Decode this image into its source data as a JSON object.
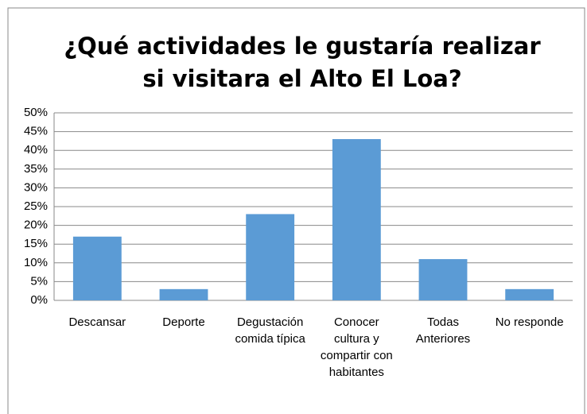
{
  "chart_data": {
    "type": "bar",
    "title": "¿Qué actividades le gustaría realizar si visitara el Alto El Loa?",
    "categories": [
      "Descansar",
      "Deporte",
      "Degustación comida típica",
      "Conocer cultura y compartir con habitantes",
      "Todas Anteriores",
      "No responde"
    ],
    "values": [
      17,
      3,
      23,
      43,
      11,
      3
    ],
    "color": "#5b9bd5",
    "ylim": [
      0,
      50
    ],
    "yticks": [
      {
        "value": 0,
        "label": "0%"
      },
      {
        "value": 5,
        "label": "5%"
      },
      {
        "value": 10,
        "label": "10%"
      },
      {
        "value": 15,
        "label": "15%"
      },
      {
        "value": 20,
        "label": "20%"
      },
      {
        "value": 25,
        "label": "25%"
      },
      {
        "value": 30,
        "label": "30%"
      },
      {
        "value": 35,
        "label": "35%"
      },
      {
        "value": 40,
        "label": "40%"
      },
      {
        "value": 45,
        "label": "45%"
      },
      {
        "value": 50,
        "label": "50%"
      }
    ],
    "grid": true
  }
}
